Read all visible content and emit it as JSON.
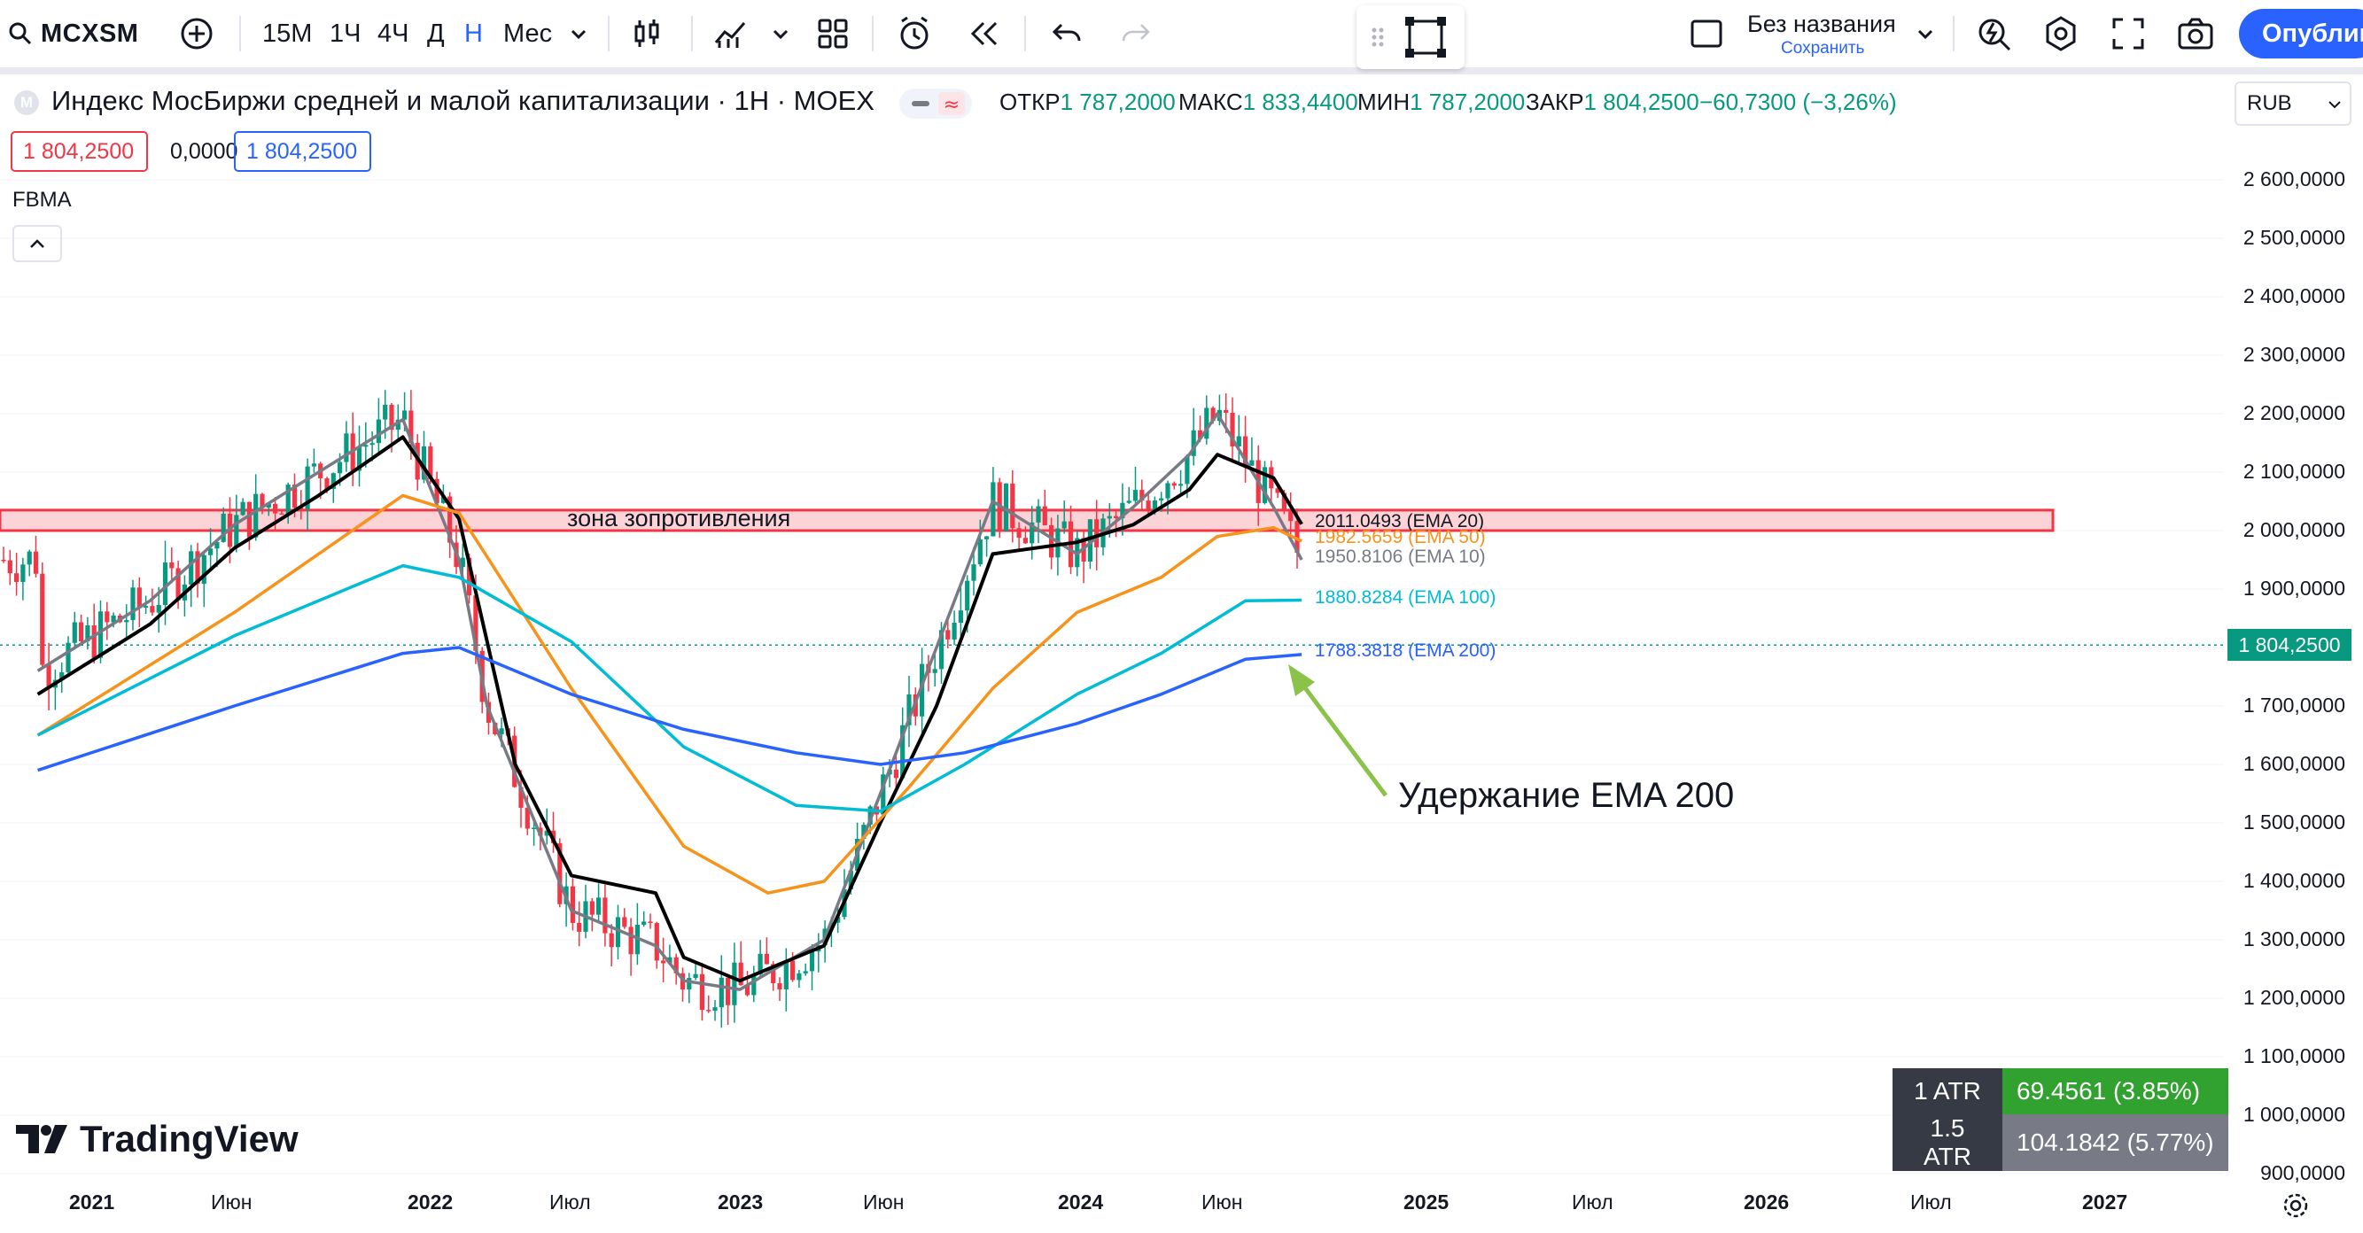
{
  "toolbar": {
    "symbol": "MCXSM",
    "intervals": [
      "15M",
      "1Ч",
      "4Ч",
      "Д",
      "Н",
      "Мес"
    ],
    "active_interval": "Н",
    "layout_name": "Без названия",
    "layout_save": "Сохранить",
    "publish_label": "Опублико"
  },
  "legend": {
    "title": "Индекс МосБиржи средней и малой капитализации · 1Н · MOEX",
    "logo_letter": "M",
    "open_label": "ОТКР",
    "open_value": "1 787,2000",
    "high_label": "МАКС",
    "high_value": "1 833,4400",
    "low_label": "МИН",
    "low_value": "1 787,2000",
    "close_label": "ЗАКР",
    "close_value": "1 804,2500",
    "change": "−60,7300 (−3,26%)",
    "sell_price": "1 804,2500",
    "spread": "0,0000",
    "buy_price": "1 804,2500",
    "indicator_name": "FBMA"
  },
  "currency": "RUB",
  "price_axis": {
    "labels": [
      "2 600,0000",
      "2 500,0000",
      "2 400,0000",
      "2 300,0000",
      "2 200,0000",
      "2 100,0000",
      "2 000,0000",
      "1 900,0000",
      "1 800,0000",
      "1 700,0000",
      "1 600,0000",
      "1 500,0000",
      "1 400,0000",
      "1 300,0000",
      "1 200,0000",
      "1 100,0000",
      "1 000,0000",
      "900,0000"
    ],
    "last_price": "1 804,2500"
  },
  "time_axis": {
    "labels": [
      {
        "text": "2021",
        "year": true
      },
      {
        "text": "Июн",
        "year": false
      },
      {
        "text": "2022",
        "year": true
      },
      {
        "text": "Июл",
        "year": false
      },
      {
        "text": "2023",
        "year": true
      },
      {
        "text": "Июн",
        "year": false
      },
      {
        "text": "2024",
        "year": true
      },
      {
        "text": "Июн",
        "year": false
      },
      {
        "text": "2025",
        "year": true
      },
      {
        "text": "Июл",
        "year": false
      },
      {
        "text": "2026",
        "year": true
      },
      {
        "text": "Июл",
        "year": false
      },
      {
        "text": "2027",
        "year": true
      }
    ]
  },
  "annotations": {
    "zone_label": "зона зопротивления",
    "ema_note": "Удержание EMA 200"
  },
  "ema_labels": [
    {
      "text": "2011.0493 (EMA 20)",
      "color": "#131722"
    },
    {
      "text": "1982.5659 (EMA 50)",
      "color": "#f7931a"
    },
    {
      "text": "1950.8106 (EMA 10)",
      "color": "#787b86"
    },
    {
      "text": "1880.8284 (EMA 100)",
      "color": "#00bcd4"
    },
    {
      "text": "1788.3818 (EMA 200)",
      "color": "#2962ff"
    }
  ],
  "atr": {
    "row1_label": "1 ATR",
    "row1_value": "69.4561 (3.85%)",
    "row2_label": "1.5 ATR",
    "row2_value": "104.1842 (5.77%)"
  },
  "branding": "TradingView",
  "colors": {
    "up": "#089981",
    "down": "#f23645",
    "ema10": "#787b86",
    "ema20": "#000000",
    "ema50": "#f7931a",
    "ema100": "#00bcd4",
    "ema200": "#2962ff",
    "zone": "#f23645",
    "arrow": "#8bc34a"
  },
  "chart_data": {
    "type": "candlestick",
    "symbol": "MCXSM",
    "timeframe": "1W",
    "y_range": [
      900,
      2600
    ],
    "resistance_zone": [
      2000,
      2035
    ],
    "last_price": 1804.25,
    "ema_series": [
      {
        "name": "EMA 10",
        "x": [
          "2020-11",
          "2021-03",
          "2021-06",
          "2021-09",
          "2021-12",
          "2022-02",
          "2022-03",
          "2022-06",
          "2022-09",
          "2022-10",
          "2022-12",
          "2023-03",
          "2023-05",
          "2023-07",
          "2023-09",
          "2023-12",
          "2024-02",
          "2024-04",
          "2024-05",
          "2024-07",
          "2024-08"
        ],
        "y": [
          1760,
          1880,
          2010,
          2100,
          2190,
          1950,
          1700,
          1350,
          1290,
          1230,
          1215,
          1300,
          1550,
          1800,
          2050,
          1960,
          2040,
          2130,
          2200,
          2040,
          1950
        ]
      },
      {
        "name": "EMA 20",
        "x": [
          "2020-11",
          "2021-03",
          "2021-06",
          "2021-09",
          "2021-12",
          "2022-02",
          "2022-04",
          "2022-06",
          "2022-09",
          "2022-10",
          "2022-12",
          "2023-03",
          "2023-05",
          "2023-07",
          "2023-09",
          "2023-12",
          "2024-02",
          "2024-04",
          "2024-05",
          "2024-07",
          "2024-08"
        ],
        "y": [
          1720,
          1840,
          1970,
          2060,
          2160,
          2020,
          1600,
          1410,
          1380,
          1270,
          1230,
          1290,
          1500,
          1700,
          1960,
          1980,
          2010,
          2070,
          2130,
          2090,
          2011
        ]
      },
      {
        "name": "EMA 50",
        "x": [
          "2020-11",
          "2021-06",
          "2021-12",
          "2022-02",
          "2022-06",
          "2022-10",
          "2023-01",
          "2023-03",
          "2023-06",
          "2023-09",
          "2023-12",
          "2024-03",
          "2024-05",
          "2024-07",
          "2024-08"
        ],
        "y": [
          1650,
          1860,
          2060,
          2030,
          1730,
          1460,
          1380,
          1400,
          1560,
          1730,
          1860,
          1920,
          1990,
          2005,
          1982
        ]
      },
      {
        "name": "EMA 100",
        "x": [
          "2020-11",
          "2021-06",
          "2021-12",
          "2022-02",
          "2022-06",
          "2022-10",
          "2023-02",
          "2023-05",
          "2023-08",
          "2023-12",
          "2024-03",
          "2024-06",
          "2024-08"
        ],
        "y": [
          1650,
          1820,
          1940,
          1920,
          1810,
          1630,
          1530,
          1520,
          1600,
          1720,
          1790,
          1880,
          1881
        ]
      },
      {
        "name": "EMA 200",
        "x": [
          "2020-11",
          "2021-06",
          "2021-12",
          "2022-02",
          "2022-06",
          "2022-10",
          "2023-02",
          "2023-05",
          "2023-08",
          "2023-12",
          "2024-03",
          "2024-06",
          "2024-08"
        ],
        "y": [
          1590,
          1700,
          1790,
          1800,
          1720,
          1660,
          1620,
          1600,
          1620,
          1670,
          1720,
          1780,
          1788
        ]
      }
    ]
  }
}
